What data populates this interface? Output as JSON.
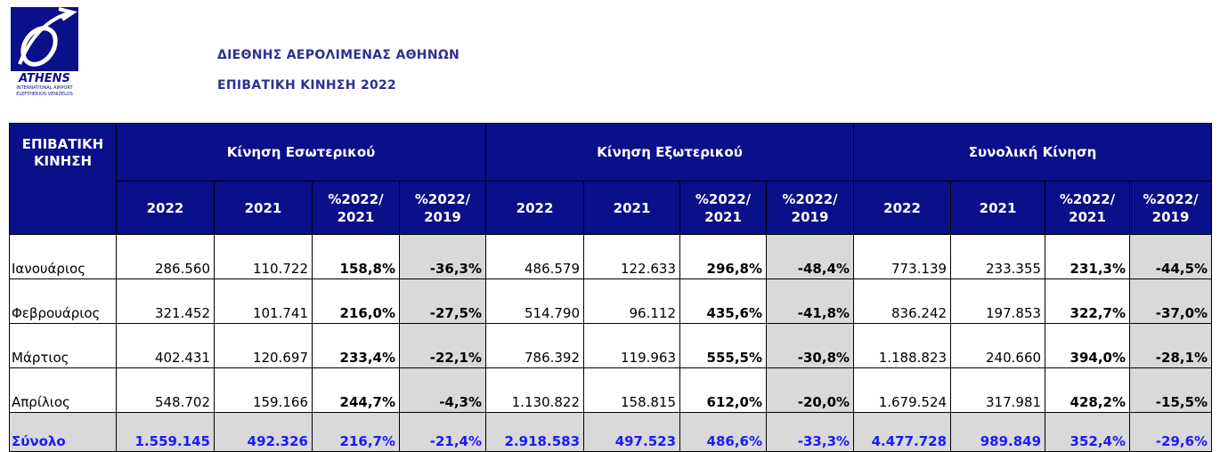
{
  "logo": {
    "name": "ATHENS",
    "line1": "INTERNATIONAL AIRPORT",
    "line2": "ELEFTHERIOS VENIZELOS"
  },
  "header": {
    "title": "ΔΙΕΘΝΗΣ ΑΕΡΟΛΙΜΕΝΑΣ ΑΘΗΝΩΝ",
    "subtitle": "ΕΠΙΒΑΤΙΚΗ ΚΙΝΗΣΗ 2022"
  },
  "table": {
    "corner": "ΕΠΙΒΑΤΙΚΗ\nΚΙΝΗΣΗ",
    "groups": [
      "Κίνηση Εσωτερικού",
      "Κίνηση Εξωτερικού",
      "Συνολική Κίνηση"
    ],
    "columns": [
      "2022",
      "2021",
      "%2022/\n2021",
      "%2022/\n2019",
      "2022",
      "2021",
      "%2022/\n2021",
      "%2022/\n2019",
      "2022",
      "2021",
      "%2022/\n2021",
      "%2022/\n2019"
    ],
    "rows": [
      [
        "Ιανουάριος",
        "286.560",
        "110.722",
        "158,8%",
        "-36,3%",
        "486.579",
        "122.633",
        "296,8%",
        "-48,4%",
        "773.139",
        "233.355",
        "231,3%",
        "-44,5%"
      ],
      [
        "Φεβρουάριος",
        "321.452",
        "101.741",
        "216,0%",
        "-27,5%",
        "514.790",
        "96.112",
        "435,6%",
        "-41,8%",
        "836.242",
        "197.853",
        "322,7%",
        "-37,0%"
      ],
      [
        "Μάρτιος",
        "402.431",
        "120.697",
        "233,4%",
        "-22,1%",
        "786.392",
        "119.963",
        "555,5%",
        "-30,8%",
        "1.188.823",
        "240.660",
        "394,0%",
        "-28,1%"
      ],
      [
        "Απρίλιος",
        "548.702",
        "159.166",
        "244,7%",
        "-4,3%",
        "1.130.822",
        "158.815",
        "612,0%",
        "-20,0%",
        "1.679.524",
        "317.981",
        "428,2%",
        "-15,5%"
      ]
    ],
    "total": [
      "Σύνολο",
      "1.559.145",
      "492.326",
      "216,7%",
      "-21,4%",
      "2.918.583",
      "497.523",
      "486,6%",
      "-33,3%",
      "4.477.728",
      "989.849",
      "352,4%",
      "-29,6%"
    ]
  }
}
